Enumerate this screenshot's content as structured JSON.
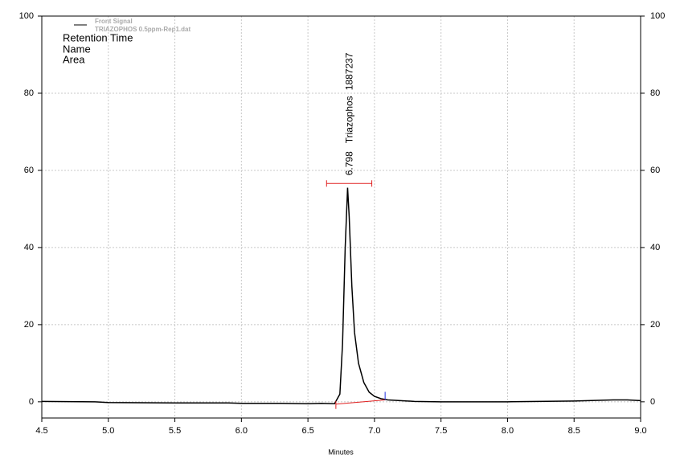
{
  "chart_data": {
    "type": "line",
    "subtitle": "TRIAZOPHOS 0.5ppm-Rep1.dat",
    "legend_fields": [
      "Retention Time",
      "Name",
      "Area"
    ],
    "xlabel": "Minutes",
    "x": [
      4.5,
      4.9,
      5.0,
      5.5,
      5.9,
      6.0,
      6.3,
      6.5,
      6.6,
      6.7,
      6.74,
      6.76,
      6.78,
      6.798,
      6.81,
      6.83,
      6.85,
      6.88,
      6.92,
      6.96,
      7.0,
      7.05,
      7.1,
      7.3,
      7.5,
      8.0,
      8.5,
      8.8,
      8.9,
      9.0
    ],
    "series": [
      {
        "name": "Front Signal",
        "color": "#000000",
        "values": [
          0.1,
          0.0,
          -0.2,
          -0.3,
          -0.3,
          -0.4,
          -0.4,
          -0.5,
          -0.4,
          -0.5,
          2,
          15,
          40,
          55.5,
          48,
          30,
          18,
          10,
          5,
          2.5,
          1.4,
          0.8,
          0.5,
          0.1,
          0.0,
          0.0,
          0.2,
          0.5,
          0.5,
          0.3
        ]
      }
    ],
    "peak": {
      "retention_time": 6.798,
      "name": "Triazophos",
      "area": 1887237,
      "baseline_x": [
        6.71,
        7.08
      ],
      "baseline_y": [
        -0.6,
        0.5
      ],
      "baseline_color": "#e02020",
      "end_color": "#2030e0",
      "bracket_x": [
        6.64,
        6.98
      ],
      "bracket_y": 56.6
    },
    "xlim": [
      4.5,
      9.0
    ],
    "xticks": [
      4.5,
      {
        "value": 5,
        "label": "5.0"
      },
      5.5,
      {
        "value": 6,
        "label": "6.0"
      },
      6.5,
      {
        "value": 7,
        "label": "7.0"
      },
      7.5,
      {
        "value": 8,
        "label": "8.0"
      },
      8.5,
      {
        "value": 9,
        "label": "9.0"
      }
    ],
    "ylim": [
      -4.2,
      100
    ],
    "yticks": [
      0,
      20,
      40,
      60,
      80,
      100
    ],
    "grid": true
  }
}
